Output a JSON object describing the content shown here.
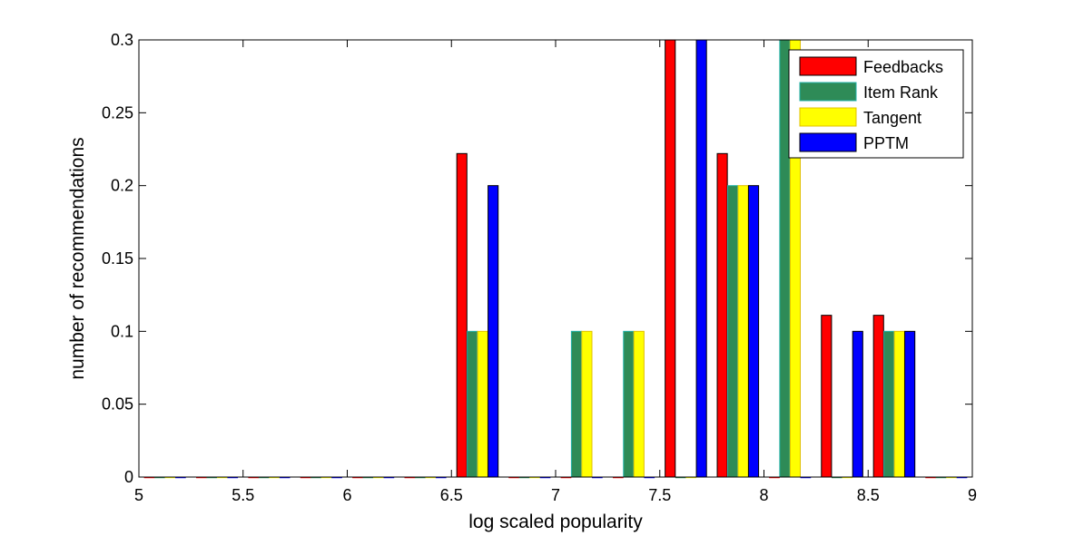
{
  "chart_data": {
    "type": "bar",
    "xlabel": "log scaled popularity",
    "ylabel": "number of recommendations",
    "xlim": [
      5,
      9
    ],
    "ylim": [
      0,
      0.3
    ],
    "xticks": [
      "5",
      "5.5",
      "6",
      "6.5",
      "7",
      "7.5",
      "8",
      "8.5",
      "9"
    ],
    "yticks": [
      "0",
      "0.05",
      "0.1",
      "0.15",
      "0.2",
      "0.25",
      "0.3"
    ],
    "bin_centers": [
      5.125,
      5.375,
      5.625,
      5.875,
      6.125,
      6.375,
      6.625,
      6.875,
      7.125,
      7.375,
      7.625,
      7.875,
      8.125,
      8.375,
      8.625,
      8.875
    ],
    "legend_position": "top-right",
    "grid": false,
    "series": [
      {
        "name": "Feedbacks",
        "color": "#ff0000",
        "values": [
          0,
          0,
          0,
          0,
          0,
          0,
          0.222,
          0,
          0,
          0,
          0.3,
          0.222,
          0,
          0.111,
          0.111,
          0
        ]
      },
      {
        "name": "Item Rank",
        "color": "#2e8b57",
        "values": [
          0,
          0,
          0,
          0,
          0,
          0,
          0.1,
          0,
          0.1,
          0.1,
          0,
          0.2,
          0.3,
          0,
          0.1,
          0
        ]
      },
      {
        "name": "Tangent",
        "color": "#ffff00",
        "values": [
          0,
          0,
          0,
          0,
          0,
          0,
          0.1,
          0,
          0.1,
          0.1,
          0,
          0.2,
          0.3,
          0,
          0.1,
          0
        ]
      },
      {
        "name": "PPTM",
        "color": "#0000ff",
        "values": [
          0,
          0,
          0,
          0,
          0,
          0,
          0.2,
          0,
          0,
          0,
          0.3,
          0.2,
          0,
          0.1,
          0.1,
          0
        ]
      }
    ]
  }
}
